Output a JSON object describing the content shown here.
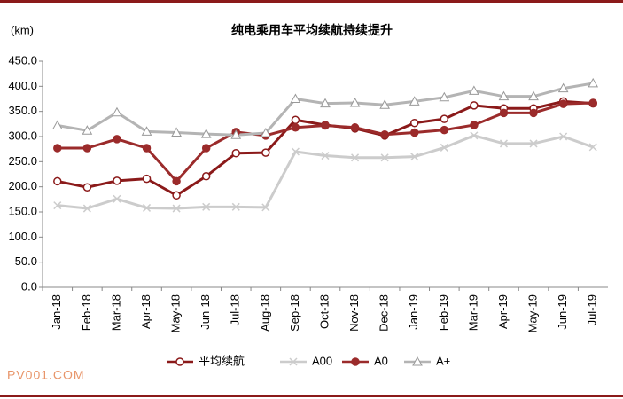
{
  "chart_data": {
    "type": "line",
    "title": "纯电乘用车平均续航持续提升",
    "y_label": "(km)",
    "footer": "PV001.COM",
    "categories": [
      "Jan-18",
      "Feb-18",
      "Mar-18",
      "Apr-18",
      "May-18",
      "Jun-18",
      "Jul-18",
      "Aug-18",
      "Sep-18",
      "Oct-18",
      "Nov-18",
      "Dec-18",
      "Jan-19",
      "Feb-19",
      "Mar-19",
      "Apr-19",
      "May-19",
      "Jun-19",
      "Jul-19"
    ],
    "series": [
      {
        "name": "平均续航",
        "color": "#8b1a1a",
        "marker": "open-circle",
        "values": [
          211,
          199,
          212,
          216,
          183,
          221,
          267,
          268,
          333,
          323,
          316,
          302,
          327,
          335,
          362,
          356,
          356,
          370,
          366
        ]
      },
      {
        "name": "A00",
        "color": "#cccccc",
        "marker": "x",
        "values": [
          163,
          157,
          176,
          158,
          157,
          160,
          160,
          159,
          270,
          262,
          258,
          258,
          260,
          278,
          302,
          286,
          286,
          300,
          279
        ]
      },
      {
        "name": "A0",
        "color": "#9b2b2b",
        "marker": "filled-circle",
        "values": [
          277,
          277,
          295,
          277,
          211,
          277,
          309,
          302,
          318,
          322,
          318,
          304,
          308,
          313,
          323,
          347,
          347,
          365,
          367
        ]
      },
      {
        "name": "A+",
        "color": "#b4b4b4",
        "marker": "triangle",
        "values": [
          322,
          312,
          348,
          310,
          308,
          305,
          303,
          307,
          375,
          366,
          367,
          363,
          370,
          378,
          391,
          380,
          380,
          396,
          406
        ]
      }
    ],
    "ylim": [
      0,
      450
    ],
    "yticks": [
      {
        "value": 0,
        "label": "0.0"
      },
      {
        "value": 50,
        "label": "50.0"
      },
      {
        "value": 100,
        "label": "100.0"
      },
      {
        "value": 150,
        "label": "150.0"
      },
      {
        "value": 200,
        "label": "200.0"
      },
      {
        "value": 250,
        "label": "250.0"
      },
      {
        "value": 300,
        "label": "300.0"
      },
      {
        "value": 350,
        "label": "350.0"
      },
      {
        "value": 400,
        "label": "400.0"
      },
      {
        "value": 450,
        "label": "450.0"
      }
    ],
    "grid": false
  }
}
